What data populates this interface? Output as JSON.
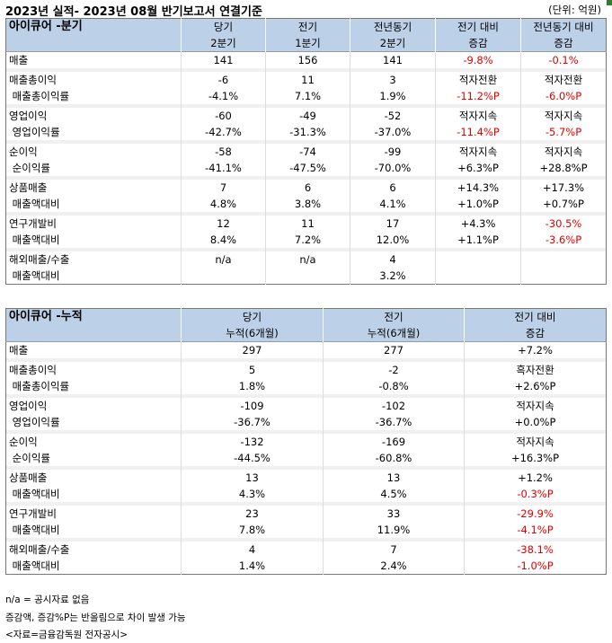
{
  "header": {
    "title": "2023년 실적- 2023년 08월 반기보고서 연결기준",
    "unit": "(단위: 억원)"
  },
  "quarter_table": {
    "corner_label": "아이큐어 -분기",
    "columns": [
      {
        "l1": "당기",
        "l2": "2분기"
      },
      {
        "l1": "전기",
        "l2": "1분기"
      },
      {
        "l1": "전년동기",
        "l2": "2분기"
      },
      {
        "l1": "전기 대비",
        "l2": "증감"
      },
      {
        "l1": "전년동기 대비",
        "l2": "증감"
      }
    ],
    "rows": [
      {
        "label": "매출",
        "values": [
          "141",
          "156",
          "141",
          "-9.8%",
          "-0.1%"
        ],
        "red": [
          false,
          false,
          false,
          true,
          true
        ]
      },
      {
        "label": "매출총이익",
        "values": [
          "-6",
          "11",
          "3",
          "적자전환",
          "적자전환"
        ],
        "red": [
          false,
          false,
          false,
          false,
          false
        ]
      },
      {
        "label": " 매출총이익률",
        "values": [
          "-4.1%",
          "7.1%",
          "1.9%",
          "-11.2%P",
          "-6.0%P"
        ],
        "red": [
          false,
          false,
          false,
          true,
          true
        ]
      },
      {
        "label": "영업이익",
        "values": [
          "-60",
          "-49",
          "-52",
          "적자지속",
          "적자지속"
        ],
        "red": [
          false,
          false,
          false,
          false,
          false
        ]
      },
      {
        "label": " 영업이익률",
        "values": [
          "-42.7%",
          "-31.3%",
          "-37.0%",
          "-11.4%P",
          "-5.7%P"
        ],
        "red": [
          false,
          false,
          false,
          true,
          true
        ]
      },
      {
        "label": "순이익",
        "values": [
          "-58",
          "-74",
          "-99",
          "적자지속",
          "적자지속"
        ],
        "red": [
          false,
          false,
          false,
          false,
          false
        ]
      },
      {
        "label": " 순이익률",
        "values": [
          "-41.1%",
          "-47.5%",
          "-70.0%",
          "+6.3%P",
          "+28.8%P"
        ],
        "red": [
          false,
          false,
          false,
          false,
          false
        ]
      },
      {
        "label": "상품매출",
        "values": [
          "7",
          "6",
          "6",
          "+14.3%",
          "+17.3%"
        ],
        "red": [
          false,
          false,
          false,
          false,
          false
        ]
      },
      {
        "label": " 매출액대비",
        "values": [
          "4.8%",
          "3.8%",
          "4.1%",
          "+1.0%P",
          "+0.7%P"
        ],
        "red": [
          false,
          false,
          false,
          false,
          false
        ]
      },
      {
        "label": "연구개발비",
        "values": [
          "12",
          "11",
          "17",
          "+4.3%",
          "-30.5%"
        ],
        "red": [
          false,
          false,
          false,
          false,
          true
        ]
      },
      {
        "label": " 매출액대비",
        "values": [
          "8.4%",
          "7.2%",
          "12.0%",
          "+1.1%P",
          "-3.6%P"
        ],
        "red": [
          false,
          false,
          false,
          false,
          true
        ]
      },
      {
        "label": "해외매출/수출",
        "values": [
          "n/a",
          "n/a",
          "4",
          "",
          ""
        ],
        "red": [
          false,
          false,
          false,
          false,
          false
        ]
      },
      {
        "label": " 매출액대비",
        "values": [
          "",
          "",
          "3.2%",
          "",
          ""
        ],
        "red": [
          false,
          false,
          false,
          false,
          false
        ]
      }
    ]
  },
  "cumulative_table": {
    "corner_label": "아이큐어 -누적",
    "columns": [
      {
        "l1": "당기",
        "l2": "누적(6개월)"
      },
      {
        "l1": "전기",
        "l2": "누적(6개월)"
      },
      {
        "l1": "전기 대비",
        "l2": "증감"
      }
    ],
    "rows": [
      {
        "label": "매출",
        "values": [
          "297",
          "277",
          "+7.2%"
        ],
        "red": [
          false,
          false,
          false
        ]
      },
      {
        "label": "매출총이익",
        "values": [
          "5",
          "-2",
          "흑자전환"
        ],
        "red": [
          false,
          false,
          false
        ]
      },
      {
        "label": " 매출총이익률",
        "values": [
          "1.8%",
          "-0.8%",
          "+2.6%P"
        ],
        "red": [
          false,
          false,
          false
        ]
      },
      {
        "label": "영업이익",
        "values": [
          "-109",
          "-102",
          "적자지속"
        ],
        "red": [
          false,
          false,
          false
        ]
      },
      {
        "label": " 영업이익률",
        "values": [
          "-36.7%",
          "-36.7%",
          "+0.0%P"
        ],
        "red": [
          false,
          false,
          false
        ]
      },
      {
        "label": "순이익",
        "values": [
          "-132",
          "-169",
          "적자지속"
        ],
        "red": [
          false,
          false,
          false
        ]
      },
      {
        "label": " 순이익률",
        "values": [
          "-44.5%",
          "-60.8%",
          "+16.3%P"
        ],
        "red": [
          false,
          false,
          false
        ]
      },
      {
        "label": "상품매출",
        "values": [
          "13",
          "13",
          "+1.2%"
        ],
        "red": [
          false,
          false,
          false
        ]
      },
      {
        "label": " 매출액대비",
        "values": [
          "4.3%",
          "4.5%",
          "-0.3%P"
        ],
        "red": [
          false,
          false,
          true
        ]
      },
      {
        "label": "연구개발비",
        "values": [
          "23",
          "33",
          "-29.9%"
        ],
        "red": [
          false,
          false,
          true
        ]
      },
      {
        "label": " 매출액대비",
        "values": [
          "7.8%",
          "11.9%",
          "-4.1%P"
        ],
        "red": [
          false,
          false,
          true
        ]
      },
      {
        "label": "해외매출/수출",
        "values": [
          "4",
          "7",
          "-38.1%"
        ],
        "red": [
          false,
          false,
          true
        ]
      },
      {
        "label": " 매출액대비",
        "values": [
          "1.4%",
          "2.4%",
          "-1.0%P"
        ],
        "red": [
          false,
          false,
          true
        ]
      }
    ]
  },
  "notes": [
    "n/a = 공시자료 없음",
    "증감액, 증감%P는 반올림으로 차이 발생 가능",
    "<자료=금융감독원 전자공시>"
  ],
  "colors": {
    "header_bg": "#bcd0e8",
    "negative_text": "#e00000",
    "row_band": "#f0f0f0"
  }
}
